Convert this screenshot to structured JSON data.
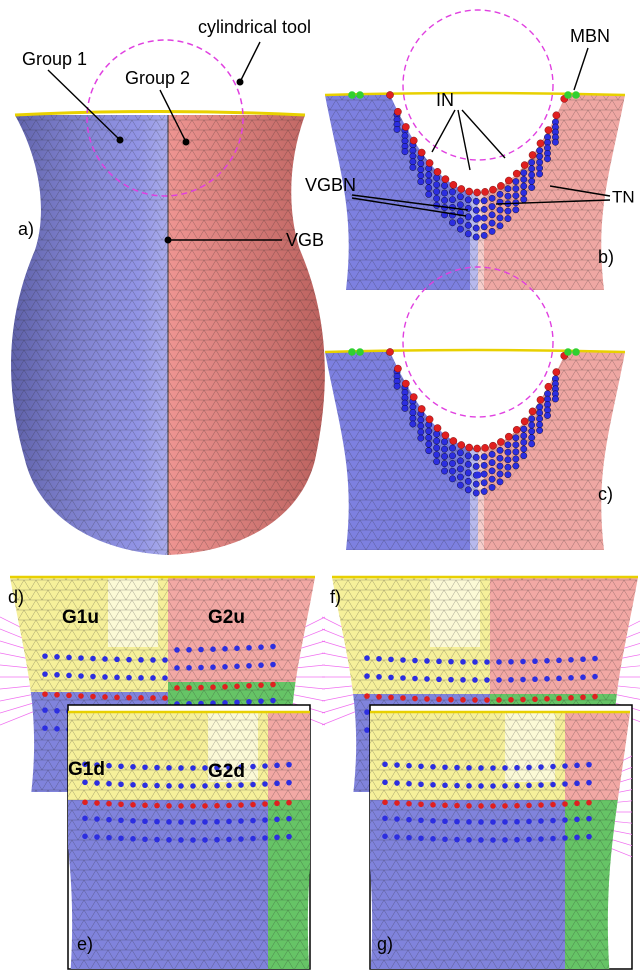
{
  "figure": {
    "panel_a": {
      "label": "a)",
      "tool": "cylindrical tool",
      "group1": "Group 1",
      "group2": "Group 2",
      "boundary": "VGB"
    },
    "panel_b": {
      "label": "b)",
      "mbn": "MBN",
      "in": "IN",
      "vgbn": "VGBN",
      "tn": "TN"
    },
    "panel_c": {
      "label": "c)"
    },
    "panel_d": {
      "label": "d)",
      "g1u": "G1u",
      "g2u": "G2u",
      "g1d": "G1d",
      "g2d": "G2d"
    },
    "panel_e": {
      "label": "e)"
    },
    "panel_f": {
      "label": "f)"
    },
    "panel_g": {
      "label": "g)"
    }
  }
}
